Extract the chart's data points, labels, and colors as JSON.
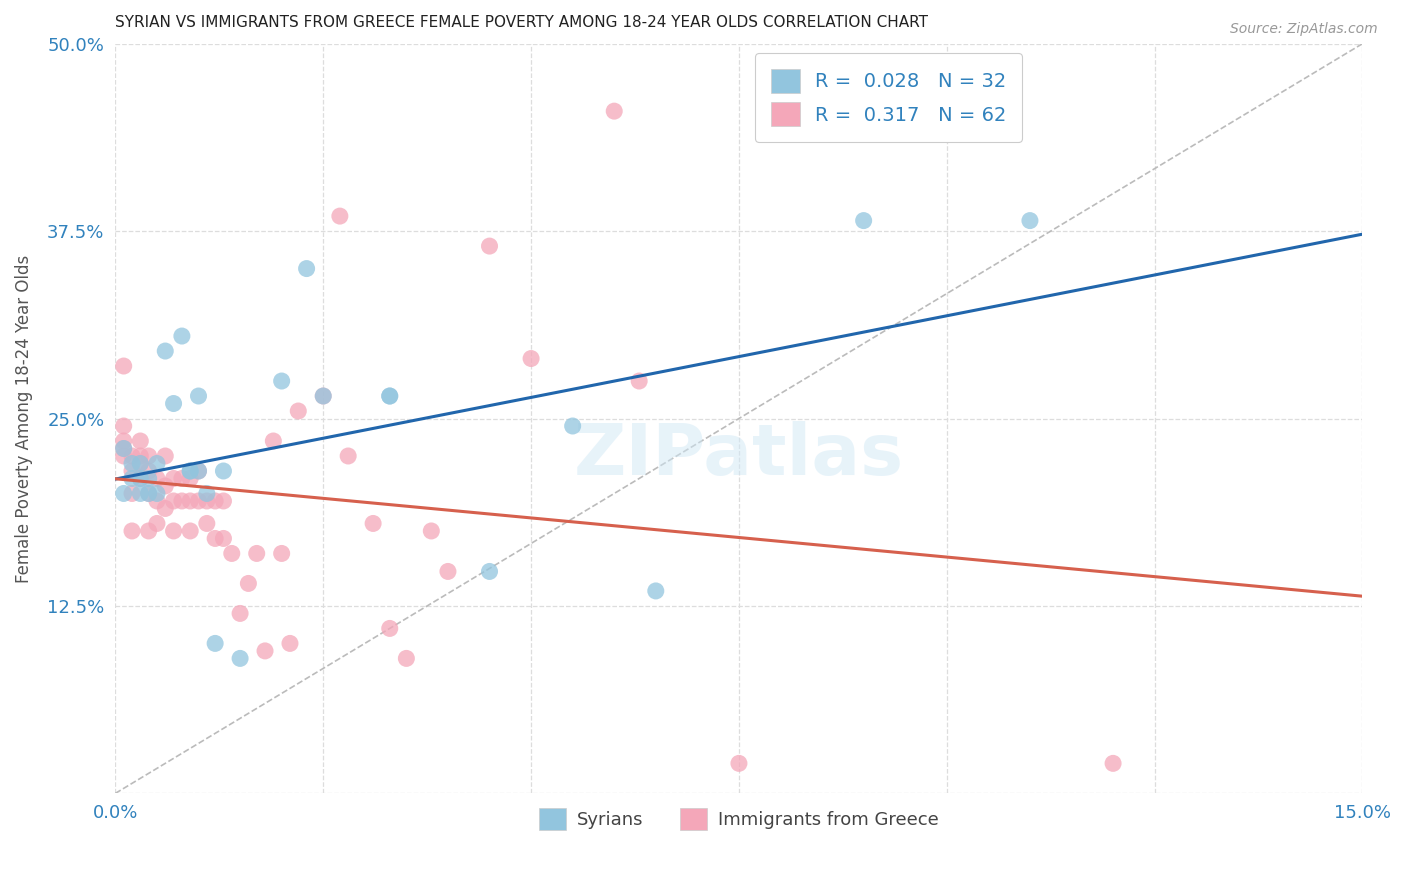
{
  "title": "SYRIAN VS IMMIGRANTS FROM GREECE FEMALE POVERTY AMONG 18-24 YEAR OLDS CORRELATION CHART",
  "source": "Source: ZipAtlas.com",
  "ylabel": "Female Poverty Among 18-24 Year Olds",
  "xlim": [
    0.0,
    0.15
  ],
  "ylim": [
    0.0,
    0.5
  ],
  "xticks": [
    0.0,
    0.025,
    0.05,
    0.075,
    0.1,
    0.125,
    0.15
  ],
  "xticklabels": [
    "0.0%",
    "",
    "",
    "",
    "",
    "",
    "15.0%"
  ],
  "yticks": [
    0.0,
    0.125,
    0.25,
    0.375,
    0.5
  ],
  "yticklabels": [
    "",
    "12.5%",
    "25.0%",
    "37.5%",
    "50.0%"
  ],
  "blue_R": 0.028,
  "blue_N": 32,
  "pink_R": 0.317,
  "pink_N": 62,
  "blue_color": "#92c5de",
  "pink_color": "#f4a7b9",
  "trend_blue_color": "#2166ac",
  "trend_pink_color": "#d6604d",
  "diag_color": "#bbbbbb",
  "grid_color": "#dddddd",
  "label_color": "#3182bd",
  "tick_color": "#3182bd",
  "syrians_label": "Syrians",
  "greece_label": "Immigrants from Greece",
  "blue_scatter_x": [
    0.001,
    0.001,
    0.002,
    0.002,
    0.003,
    0.003,
    0.003,
    0.004,
    0.004,
    0.005,
    0.005,
    0.006,
    0.007,
    0.008,
    0.009,
    0.009,
    0.01,
    0.01,
    0.011,
    0.012,
    0.013,
    0.015,
    0.02,
    0.023,
    0.025,
    0.033,
    0.033,
    0.045,
    0.055,
    0.065,
    0.09,
    0.11
  ],
  "blue_scatter_y": [
    0.23,
    0.2,
    0.21,
    0.22,
    0.22,
    0.21,
    0.2,
    0.21,
    0.2,
    0.22,
    0.2,
    0.295,
    0.26,
    0.305,
    0.215,
    0.215,
    0.215,
    0.265,
    0.2,
    0.1,
    0.215,
    0.09,
    0.275,
    0.35,
    0.265,
    0.265,
    0.265,
    0.148,
    0.245,
    0.135,
    0.382,
    0.382
  ],
  "pink_scatter_x": [
    0.001,
    0.001,
    0.001,
    0.001,
    0.001,
    0.002,
    0.002,
    0.002,
    0.002,
    0.003,
    0.003,
    0.003,
    0.003,
    0.004,
    0.004,
    0.004,
    0.004,
    0.005,
    0.005,
    0.005,
    0.006,
    0.006,
    0.006,
    0.007,
    0.007,
    0.007,
    0.008,
    0.008,
    0.009,
    0.009,
    0.009,
    0.01,
    0.01,
    0.011,
    0.011,
    0.012,
    0.012,
    0.013,
    0.013,
    0.014,
    0.015,
    0.016,
    0.017,
    0.018,
    0.019,
    0.02,
    0.021,
    0.022,
    0.025,
    0.027,
    0.028,
    0.031,
    0.033,
    0.035,
    0.038,
    0.04,
    0.045,
    0.05,
    0.06,
    0.063,
    0.075,
    0.12
  ],
  "pink_scatter_y": [
    0.285,
    0.245,
    0.235,
    0.225,
    0.23,
    0.225,
    0.215,
    0.2,
    0.175,
    0.235,
    0.225,
    0.22,
    0.21,
    0.225,
    0.215,
    0.2,
    0.175,
    0.21,
    0.195,
    0.18,
    0.225,
    0.205,
    0.19,
    0.21,
    0.195,
    0.175,
    0.21,
    0.195,
    0.21,
    0.195,
    0.175,
    0.215,
    0.195,
    0.195,
    0.18,
    0.195,
    0.17,
    0.195,
    0.17,
    0.16,
    0.12,
    0.14,
    0.16,
    0.095,
    0.235,
    0.16,
    0.1,
    0.255,
    0.265,
    0.385,
    0.225,
    0.18,
    0.11,
    0.09,
    0.175,
    0.148,
    0.365,
    0.29,
    0.455,
    0.275,
    0.02,
    0.02
  ]
}
